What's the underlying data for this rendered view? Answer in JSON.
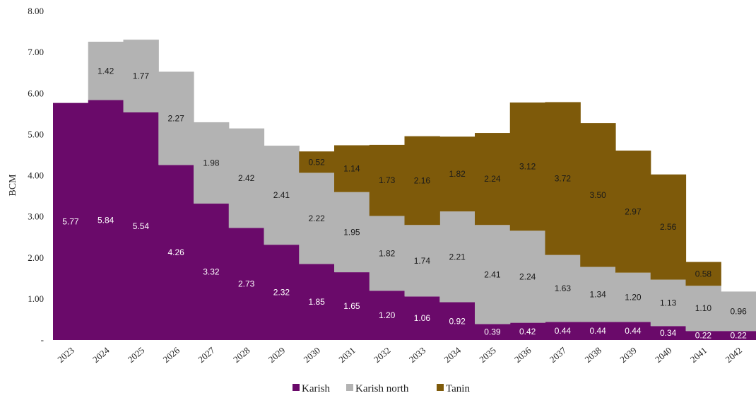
{
  "chart_data": {
    "type": "area",
    "stacked": true,
    "step": true,
    "title": "",
    "xlabel": "",
    "ylabel": "BCM",
    "ylim": [
      0,
      8
    ],
    "yticks": [
      "-",
      "1.00",
      "2.00",
      "3.00",
      "4.00",
      "5.00",
      "6.00",
      "7.00",
      "8.00"
    ],
    "categories": [
      "2023",
      "2024",
      "2025",
      "2026",
      "2027",
      "2028",
      "2029",
      "2030",
      "2031",
      "2032",
      "2033",
      "2034",
      "2035",
      "2036",
      "2037",
      "2038",
      "2039",
      "2040",
      "2041",
      "2042"
    ],
    "series": [
      {
        "name": "Karish",
        "color": "#6a0a6a",
        "values": [
          5.77,
          5.84,
          5.54,
          4.26,
          3.32,
          2.73,
          2.32,
          1.85,
          1.65,
          1.2,
          1.06,
          0.92,
          0.39,
          0.42,
          0.44,
          0.44,
          0.44,
          0.34,
          0.22,
          0.22
        ],
        "labels": [
          "5.77",
          "5.84",
          "5.54",
          "4.26",
          "3.32",
          "2.73",
          "2.32",
          "1.85",
          "1.65",
          "1.20",
          "1.06",
          "0.92",
          "0.39",
          "0.42",
          "0.44",
          "0.44",
          "0.44",
          "0.34",
          "0.22",
          "0.22"
        ]
      },
      {
        "name": "Karish north",
        "color": "#b3b3b3",
        "values": [
          null,
          1.42,
          1.77,
          2.27,
          1.98,
          2.42,
          2.41,
          2.22,
          1.95,
          1.82,
          1.74,
          2.21,
          2.41,
          2.24,
          1.63,
          1.34,
          1.2,
          1.13,
          1.1,
          0.96
        ],
        "labels": [
          "",
          "1.42",
          "1.77",
          "2.27",
          "1.98",
          "2.42",
          "2.41",
          "2.22",
          "1.95",
          "1.82",
          "1.74",
          "2.21",
          "2.41",
          "2.24",
          "1.63",
          "1.34",
          "1.20",
          "1.13",
          "1.10",
          "0.96"
        ]
      },
      {
        "name": "Tanin",
        "color": "#7e5a0a",
        "values": [
          null,
          null,
          null,
          null,
          null,
          null,
          null,
          0.52,
          1.14,
          1.73,
          2.16,
          1.82,
          2.24,
          3.12,
          3.72,
          3.5,
          2.97,
          2.56,
          0.58,
          null
        ],
        "labels": [
          "",
          "",
          "",
          "",
          "",
          "",
          "",
          "0.52",
          "1.14",
          "1.73",
          "2.16",
          "1.82",
          "2.24",
          "3.12",
          "3.72",
          "3.50",
          "2.97",
          "2.56",
          "0.58",
          ""
        ]
      }
    ],
    "grid": false,
    "legend_position": "bottom"
  }
}
